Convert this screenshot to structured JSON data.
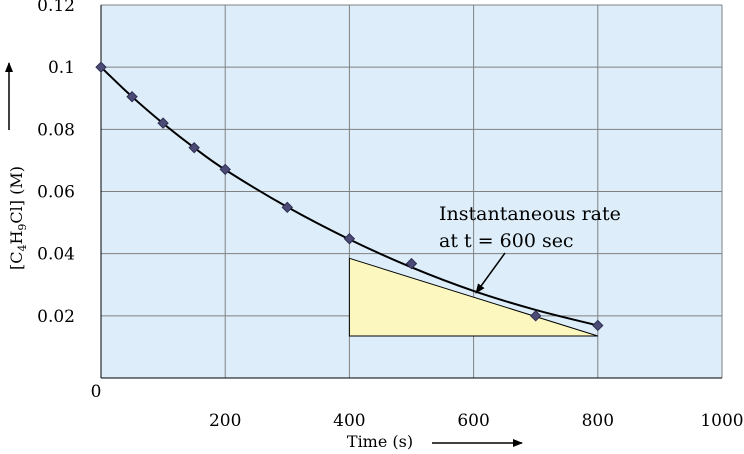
{
  "chart_data": {
    "type": "scatter",
    "title": "",
    "xlabel": "Time (s)",
    "ylabel_parts": [
      "[C",
      "4",
      "H",
      "9",
      "Cl] (M)"
    ],
    "xlim": [
      0,
      1000
    ],
    "ylim": [
      0,
      0.12
    ],
    "x_ticks": [
      200,
      400,
      600,
      800,
      1000
    ],
    "x_tick_labels": [
      "200",
      "400",
      "600",
      "800",
      "1000"
    ],
    "y_ticks": [
      0.02,
      0.04,
      0.06,
      0.08,
      0.1,
      0.12
    ],
    "y_tick_labels": [
      "0.02",
      "0.04",
      "0.06",
      "0.08",
      "0.1",
      "0.12"
    ],
    "origin_label": "0",
    "x_gridlines": [
      200,
      400,
      600,
      800,
      1000
    ],
    "y_gridlines": [
      0.02,
      0.04,
      0.06,
      0.08,
      0.1,
      0.12
    ],
    "grid": true,
    "series": [
      {
        "name": "[C4H9Cl]",
        "x": [
          0,
          50,
          100,
          150,
          200,
          300,
          400,
          500,
          700,
          800
        ],
        "y": [
          0.1,
          0.0905,
          0.082,
          0.0741,
          0.0671,
          0.0549,
          0.0448,
          0.0368,
          0.02,
          0.0169
        ]
      }
    ],
    "fit_curve": {
      "x": [
        0,
        50,
        100,
        150,
        200,
        300,
        400,
        500,
        600,
        700,
        800
      ],
      "y": [
        0.1,
        0.0905,
        0.0819,
        0.0741,
        0.067,
        0.055,
        0.0446,
        0.0356,
        0.028,
        0.0219,
        0.0169
      ]
    },
    "tangent_triangle": {
      "x0": 400,
      "x1": 800,
      "y_top": 0.0385,
      "y_bottom": 0.0135
    },
    "annotation": {
      "lines": [
        "Instantaneous rate",
        "at t = 600 sec"
      ],
      "arrow_target": {
        "x": 600,
        "y": 0.0275
      }
    },
    "colors": {
      "plot_bg": "#ddeefa",
      "grid": "#808080",
      "marker": "#4b4b76",
      "curve": "#000000",
      "triangle": "#fbf7bf"
    }
  }
}
